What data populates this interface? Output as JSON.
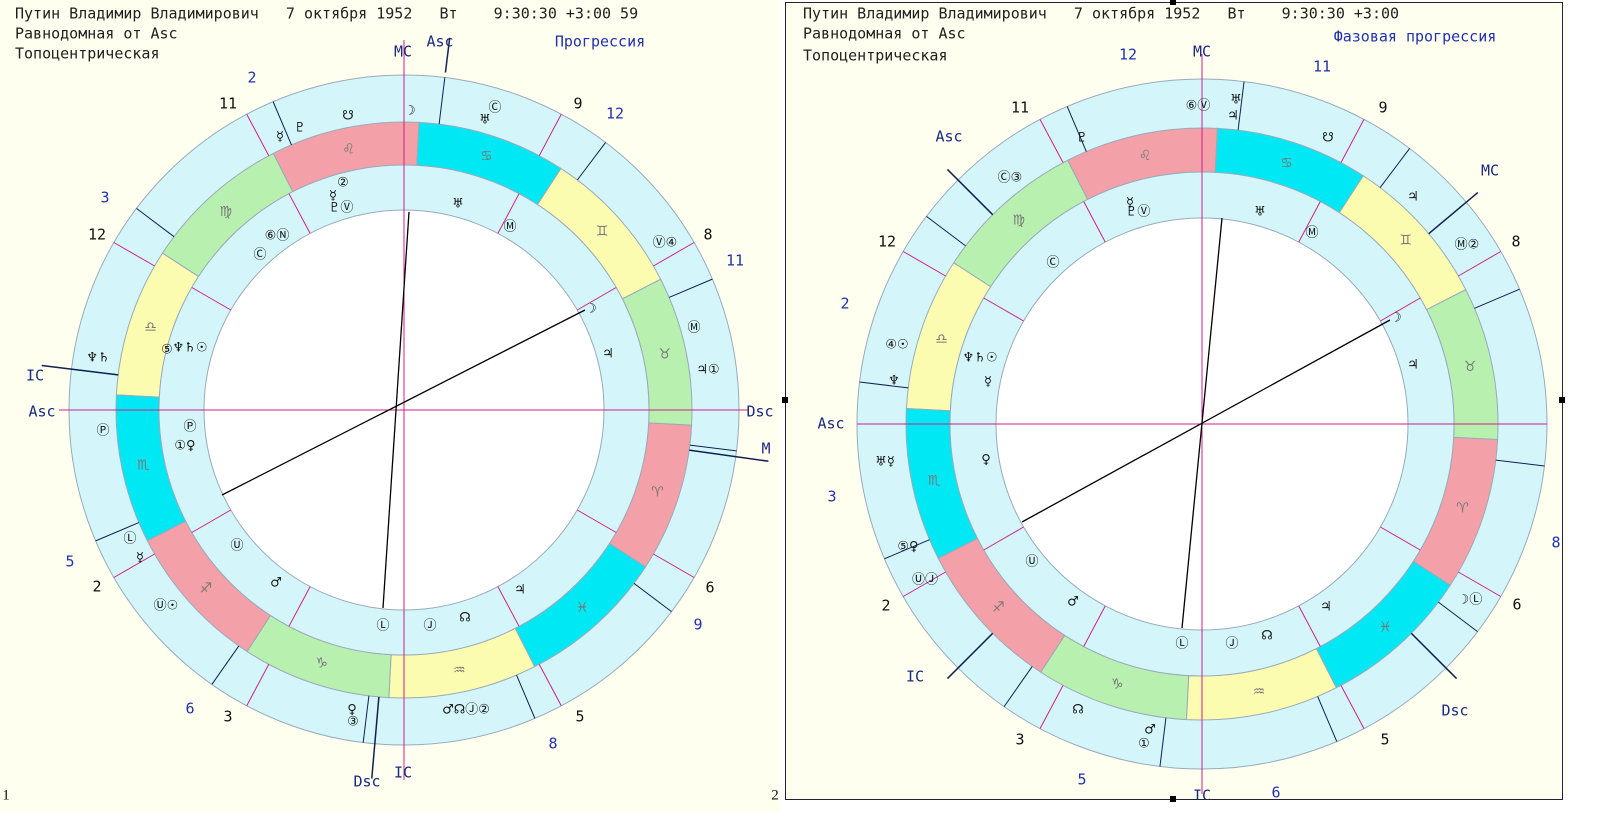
{
  "panels": [
    {
      "number": "1",
      "header": [
        "Путин Владимир Владимирович   7 октября 1952   Вт    9:30:30 +3:00 59",
        "Равнодомная от Asc",
        "Топоцентрическая"
      ],
      "labels": [
        "MC",
        "Asc",
        "Прогрессия",
        "IC",
        "Asc",
        "Dsc",
        "M",
        "Dsc",
        "IC"
      ],
      "zodiac": [
        "♌",
        "♍",
        "♎",
        "♏",
        "♐",
        "♑",
        "♒",
        "♓",
        "♈",
        "♉",
        "♊",
        "♋"
      ],
      "houses_natal": [
        "11",
        "9",
        "12",
        "8",
        "2",
        "6",
        "3",
        "5"
      ],
      "houses_progressed": [
        "2",
        "12",
        "3",
        "11",
        "5",
        "9",
        "6",
        "8"
      ],
      "planets_outer": [
        "☿",
        "♇",
        "☋",
        "☽",
        "♅",
        "Ⓒ",
        "Ⓥ④",
        "Ⓜ",
        "♃①",
        "♆♄",
        "Ⓟ",
        "Ⓛ",
        "☿",
        "Ⓤ☉",
        "♀",
        "③",
        "♂☊Ⓙ②"
      ],
      "planets_inner": [
        "②",
        "☿",
        "♇Ⓥ",
        "⑥Ⓝ",
        "Ⓒ",
        "⑤",
        "♆♄☉",
        "Ⓟ",
        "①♀",
        "♅",
        "Ⓜ",
        "☽",
        "♃",
        "Ⓤ",
        "♂",
        "Ⓛ",
        "Ⓙ",
        "☊",
        "♃"
      ]
    },
    {
      "number": "2",
      "header": [
        "Путин Владимир Владимирович   7 октября 1952   Вт    9:30:30 +3:00",
        "Равнодомная от Asc",
        "Топоцентрическая"
      ],
      "labels": [
        "MC",
        "Фазовая прогрессия",
        "Asc",
        "MC",
        "Asc",
        "IC",
        "Dsc",
        "IC"
      ],
      "zodiac": [
        "♌",
        "♍",
        "♎",
        "♏",
        "♐",
        "♑",
        "♒",
        "♓",
        "♈",
        "♉",
        "♊",
        "♋"
      ],
      "houses_natal": [
        "11",
        "9",
        "12",
        "8",
        "2",
        "6",
        "3",
        "5"
      ],
      "houses_progressed": [
        "12",
        "11",
        "2",
        "3",
        "8",
        "5",
        "6"
      ],
      "planets_outer": [
        "⑥Ⓥ",
        "♅",
        "♃",
        "♇",
        "☋",
        "♃",
        "Ⓒ③",
        "Ⓜ②",
        "④☉",
        "♆",
        "♅☿",
        "⑤♀",
        "ⓊⒿ",
        "☽Ⓛ",
        "☊",
        "♂",
        "①"
      ],
      "planets_inner": [
        "☿",
        "♇Ⓥ",
        "♅",
        "Ⓜ",
        "Ⓒ",
        "♆♄☉",
        "☿",
        "♀",
        "☽",
        "♃",
        "Ⓤ",
        "♂",
        "Ⓛ",
        "Ⓙ",
        "☊",
        "♃"
      ]
    }
  ]
}
